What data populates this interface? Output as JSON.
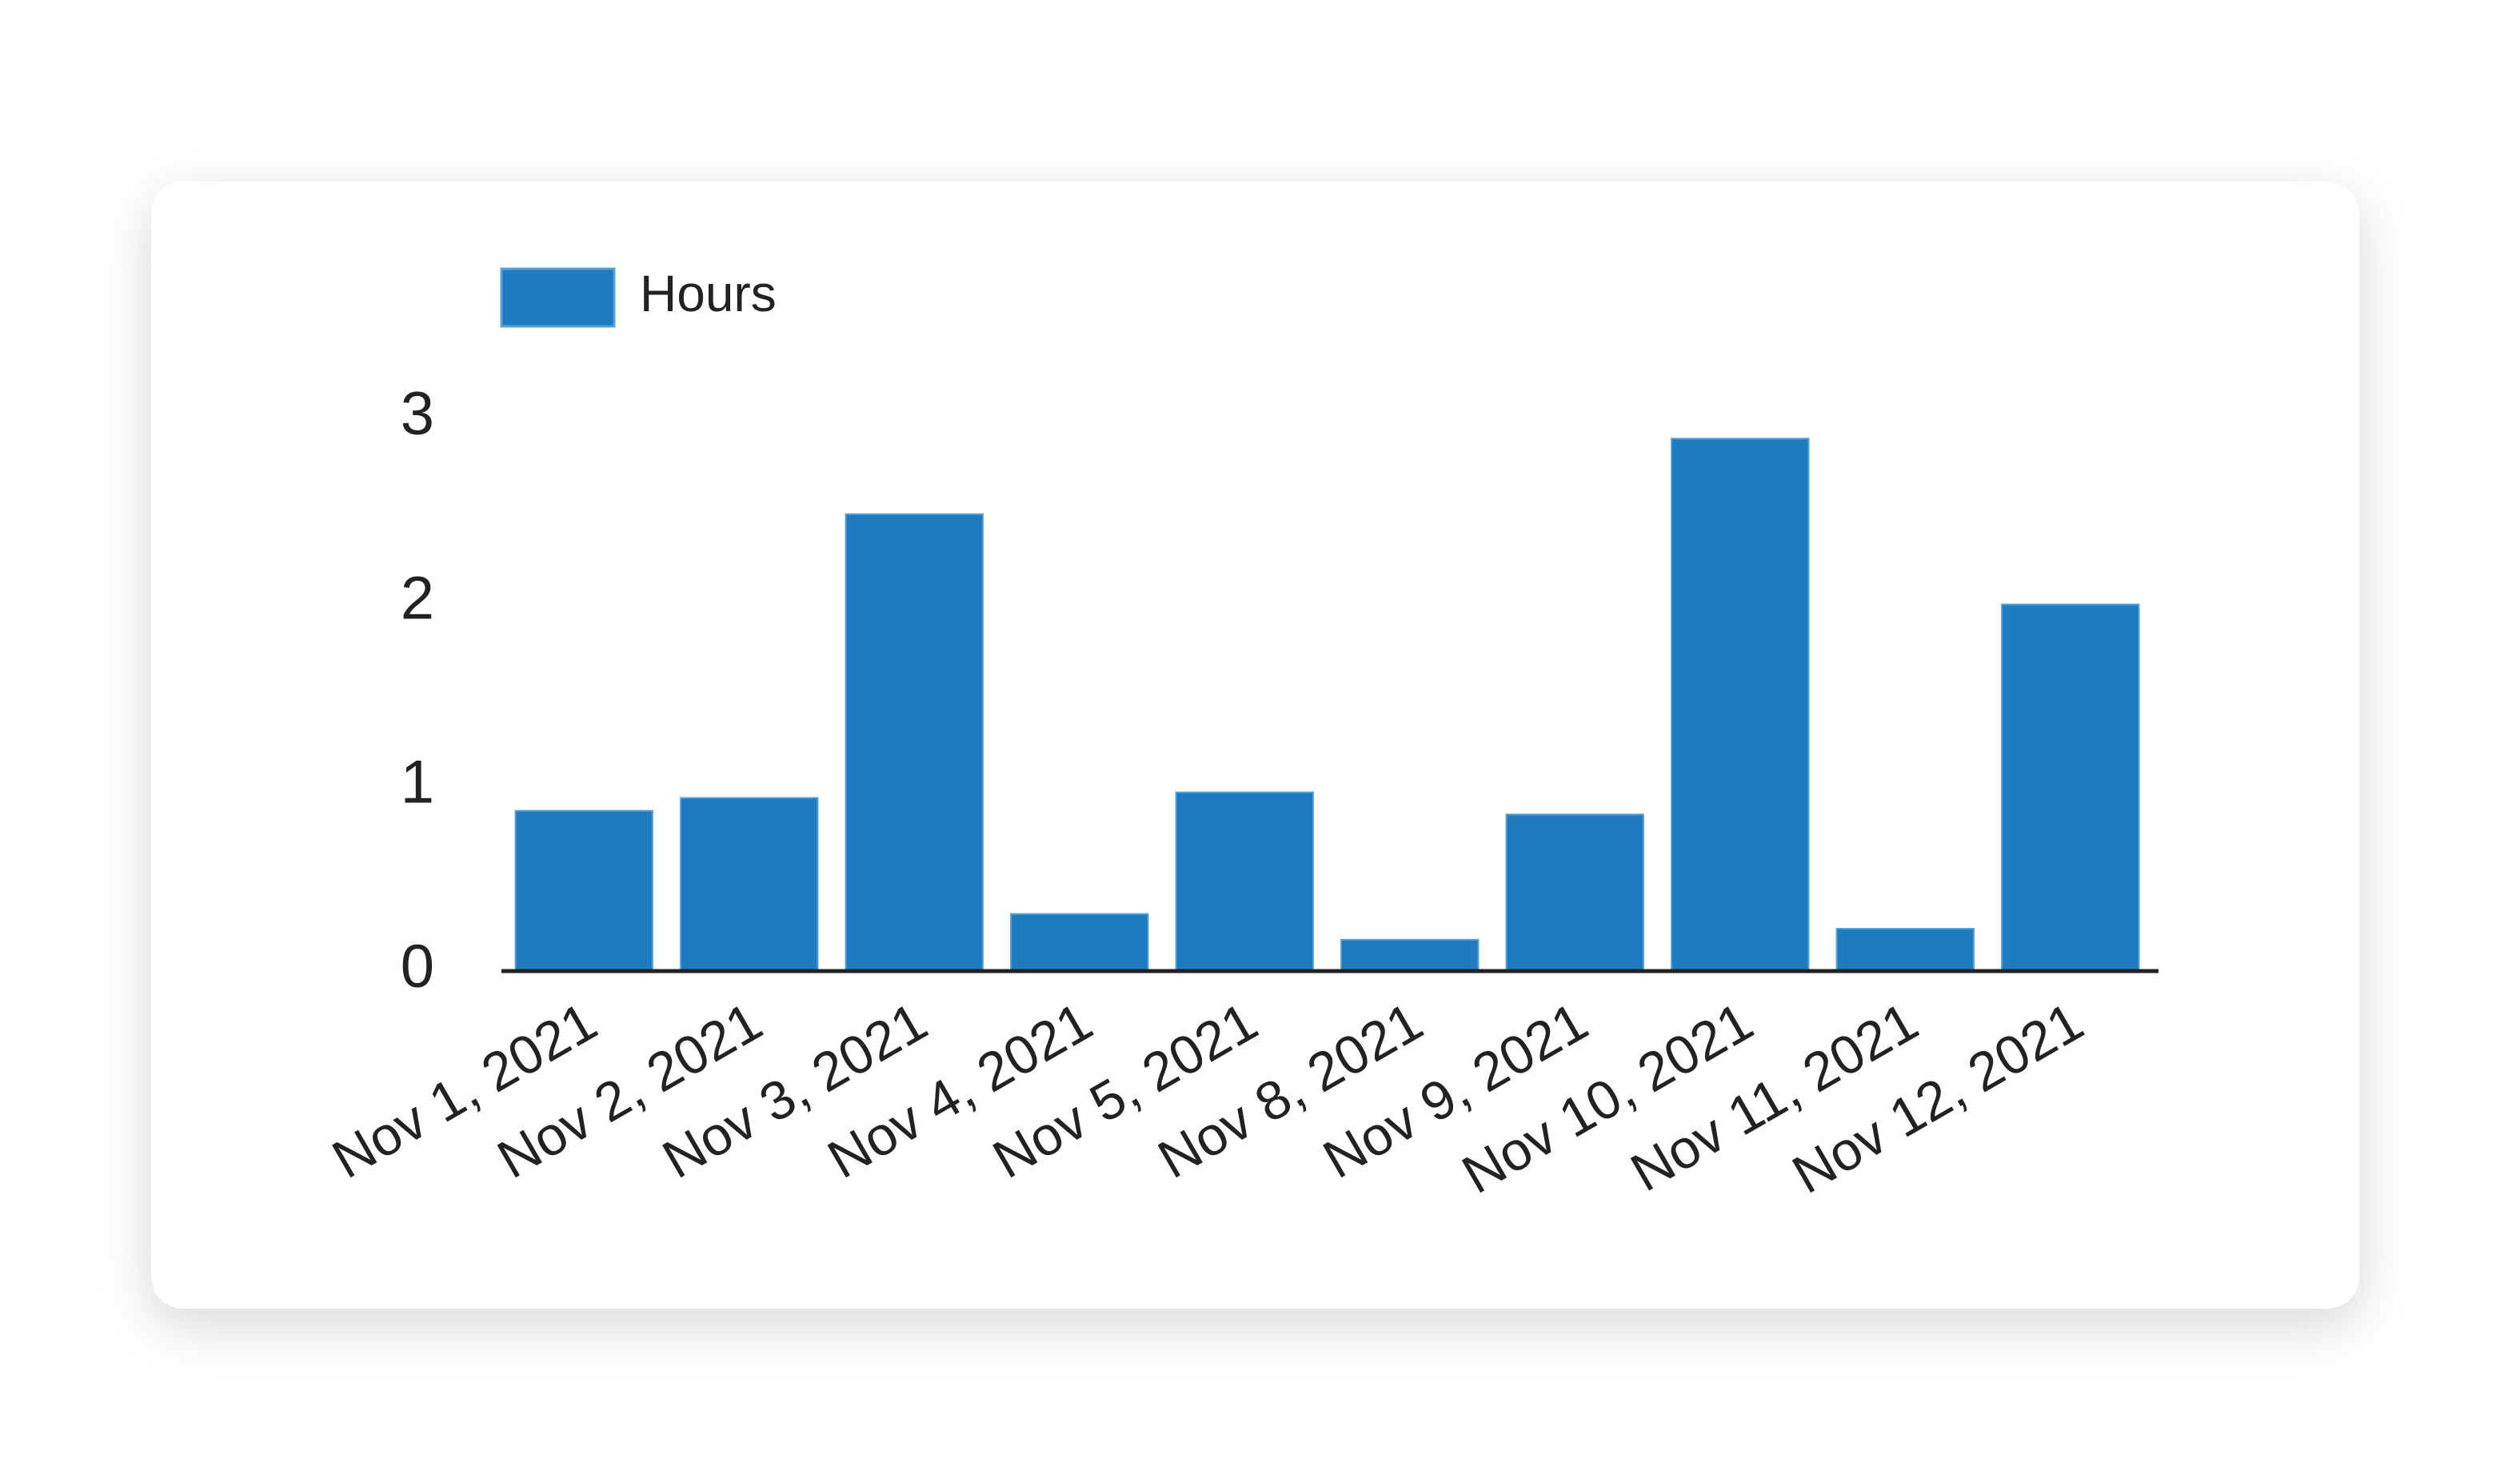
{
  "chart_data": {
    "type": "bar",
    "categories": [
      "Nov 1, 2021",
      "Nov 2, 2021",
      "Nov 3, 2021",
      "Nov 4, 2021",
      "Nov 5, 2021",
      "Nov 8, 2021",
      "Nov 9, 2021",
      "Nov 10, 2021",
      "Nov 11, 2021",
      "Nov 12, 2021"
    ],
    "series": [
      {
        "name": "Hours",
        "color": "#1f7bbf",
        "values": [
          0.87,
          0.94,
          2.48,
          0.31,
          0.97,
          0.17,
          0.85,
          2.89,
          0.23,
          1.99
        ]
      }
    ],
    "ylim": [
      0,
      3
    ],
    "yticks": [
      0,
      1,
      2,
      3
    ],
    "grid": false,
    "legend": "top-left"
  }
}
